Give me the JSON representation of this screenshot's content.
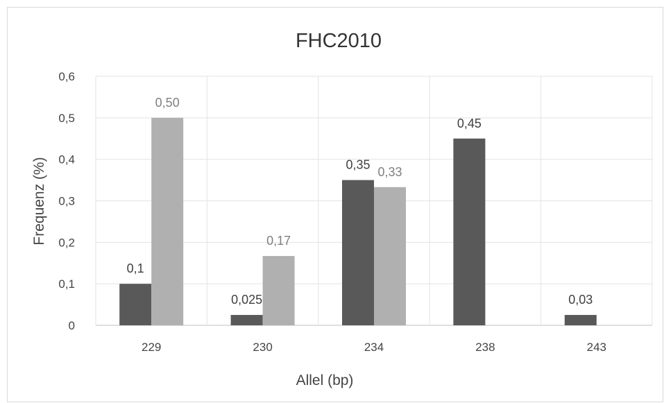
{
  "chart_data": {
    "type": "bar",
    "title": "FHC2010",
    "xlabel": "Allel (bp)",
    "ylabel": "Frequenz (%)",
    "categories": [
      "229",
      "230",
      "234",
      "238",
      "243"
    ],
    "ylim": [
      0,
      0.6
    ],
    "yticks": [
      {
        "value": 0,
        "label": "0"
      },
      {
        "value": 0.1,
        "label": "0,1"
      },
      {
        "value": 0.2,
        "label": "0,2"
      },
      {
        "value": 0.3,
        "label": "0,3"
      },
      {
        "value": 0.4,
        "label": "0,4"
      },
      {
        "value": 0.5,
        "label": "0,5"
      },
      {
        "value": 0.6,
        "label": "0,6"
      }
    ],
    "grid": true,
    "legend": "none",
    "series": [
      {
        "values": [
          0.1,
          0.025,
          0.35,
          0.45,
          0.025
        ],
        "labels": [
          "0,1",
          "0,025",
          "0,35",
          "0,45",
          "0,03"
        ],
        "color": "#595959",
        "label_color": "#404040"
      },
      {
        "values": [
          0.5,
          0.167,
          0.333,
          null,
          null
        ],
        "labels": [
          "0,50",
          "0,17",
          "0,33",
          null,
          null
        ],
        "color": "#b0b0b0",
        "label_color": "#7f7f7f"
      }
    ]
  }
}
